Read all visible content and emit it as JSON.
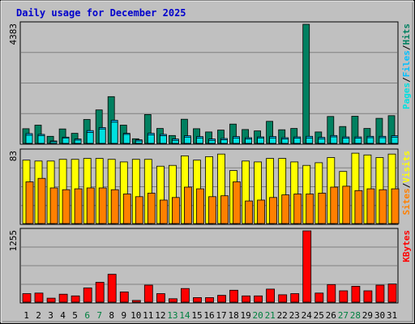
{
  "title": "Daily usage for December 2025",
  "colors": {
    "background": "#c0c0c0",
    "title": "#0000cc",
    "hits": "#008060",
    "files": "#00c0ff",
    "pages": "#00e0e0",
    "visits": "#ffff00",
    "sites": "#ff8000",
    "kbytes": "#ff0000",
    "weekend_label": "#008040",
    "weekday_label": "#000000"
  },
  "chart_data": [
    {
      "type": "bar",
      "panel": "hits-files-pages",
      "scale_label": "4383",
      "ylim": [
        0,
        4383
      ],
      "right_labels": [
        "Hits",
        "Files",
        "Pages"
      ],
      "separator": "/",
      "categories": [
        "1",
        "2",
        "3",
        "4",
        "5",
        "6",
        "7",
        "8",
        "9",
        "10",
        "11",
        "12",
        "13",
        "14",
        "15",
        "16",
        "17",
        "18",
        "19",
        "20",
        "21",
        "22",
        "23",
        "24",
        "25",
        "26",
        "27",
        "28",
        "29",
        "30",
        "31"
      ],
      "series": [
        {
          "name": "Hits",
          "values": [
            540,
            670,
            260,
            530,
            370,
            880,
            1230,
            1720,
            670,
            170,
            1060,
            550,
            290,
            890,
            540,
            420,
            490,
            710,
            510,
            460,
            810,
            500,
            550,
            4383,
            420,
            990,
            620,
            1000,
            550,
            920,
            1020
          ]
        },
        {
          "name": "Files",
          "values": [
            360,
            330,
            90,
            230,
            160,
            470,
            580,
            850,
            370,
            130,
            370,
            330,
            160,
            280,
            250,
            160,
            180,
            250,
            210,
            240,
            250,
            210,
            240,
            260,
            220,
            290,
            240,
            240,
            260,
            260,
            280
          ]
        },
        {
          "name": "Pages",
          "values": [
            300,
            290,
            60,
            200,
            120,
            400,
            530,
            780,
            330,
            90,
            310,
            280,
            110,
            230,
            200,
            110,
            130,
            200,
            160,
            200,
            200,
            160,
            190,
            200,
            170,
            240,
            190,
            190,
            210,
            210,
            230
          ]
        }
      ]
    },
    {
      "type": "bar",
      "panel": "visits-sites",
      "scale_label": "83",
      "ylim": [
        0,
        83
      ],
      "right_labels": [
        "Visits",
        "Sites"
      ],
      "separator": "/",
      "categories": [
        "1",
        "2",
        "3",
        "4",
        "5",
        "6",
        "7",
        "8",
        "9",
        "10",
        "11",
        "12",
        "13",
        "14",
        "15",
        "16",
        "17",
        "18",
        "19",
        "20",
        "21",
        "22",
        "23",
        "24",
        "25",
        "26",
        "27",
        "28",
        "29",
        "30",
        "31"
      ],
      "series": [
        {
          "name": "Visits",
          "values": [
            73,
            72,
            72,
            74,
            74,
            75,
            75,
            74,
            71,
            74,
            74,
            66,
            67,
            78,
            73,
            77,
            80,
            61,
            72,
            71,
            75,
            75,
            71,
            67,
            70,
            76,
            60,
            81,
            79,
            76,
            80
          ]
        },
        {
          "name": "Sites",
          "values": [
            48,
            52,
            41,
            39,
            40,
            41,
            41,
            39,
            34,
            31,
            35,
            27,
            30,
            42,
            40,
            31,
            32,
            48,
            26,
            27,
            30,
            33,
            34,
            34,
            35,
            42,
            43,
            38,
            40,
            39,
            40
          ]
        }
      ]
    },
    {
      "type": "bar",
      "panel": "kbytes",
      "scale_label": "1255",
      "ylim": [
        0,
        1255
      ],
      "right_labels": [
        "KBytes"
      ],
      "categories": [
        "1",
        "2",
        "3",
        "4",
        "5",
        "6",
        "7",
        "8",
        "9",
        "10",
        "11",
        "12",
        "13",
        "14",
        "15",
        "16",
        "17",
        "18",
        "19",
        "20",
        "21",
        "22",
        "23",
        "24",
        "25",
        "26",
        "27",
        "28",
        "29",
        "30",
        "31"
      ],
      "series": [
        {
          "name": "KBytes",
          "values": [
            150,
            160,
            70,
            140,
            110,
            250,
            350,
            490,
            180,
            30,
            300,
            150,
            60,
            240,
            80,
            80,
            120,
            210,
            110,
            110,
            230,
            130,
            150,
            1255,
            160,
            310,
            200,
            280,
            200,
            300,
            320
          ]
        }
      ]
    }
  ],
  "weekend_days": [
    "6",
    "7",
    "13",
    "14",
    "20",
    "21",
    "27",
    "28"
  ]
}
